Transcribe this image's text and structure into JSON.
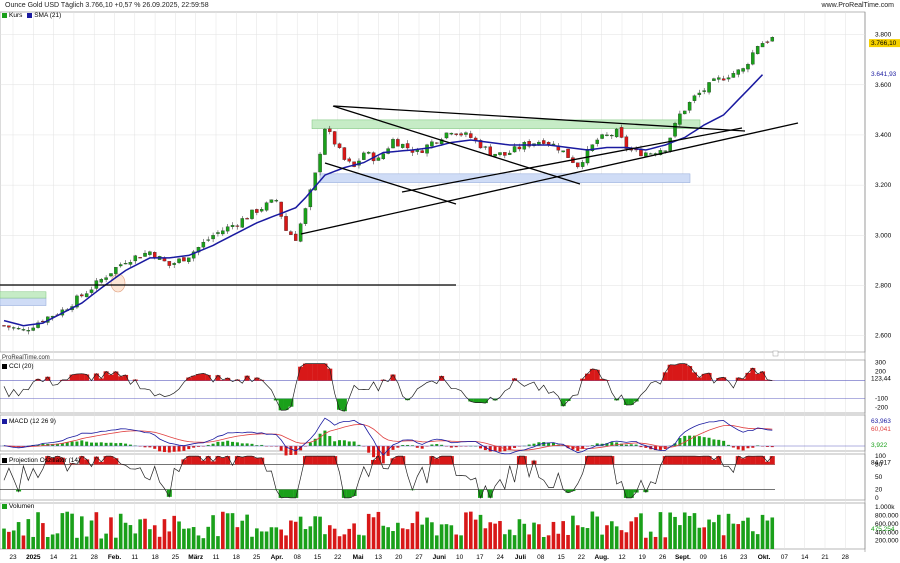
{
  "header": {
    "title": "Ounce Gold USD Täglich 3.766,10 +0,57 % 26.09.2025, 22:59:58",
    "source": "www.ProRealTime.com"
  },
  "brand": "ProRealTime.com",
  "legend": {
    "price": "Kurs",
    "sma": "SMA (21)",
    "cci": "CCI (20)",
    "macd": "MACD (12 26 9)",
    "projection": "Projection Oszillator (14)",
    "volume": "Volumen"
  },
  "colors": {
    "up": "#1aa01a",
    "down": "#d81818",
    "sma": "#1a1aa0",
    "grid": "#e2e2e2",
    "area_green": "#c6ecc6",
    "area_blue": "#cfdcf6",
    "macd_line": "#1a1aa0",
    "signal_line": "#e04040",
    "current_badge": "#f5d000"
  },
  "chart_data": [
    {
      "type": "line",
      "name": "price",
      "yticks": [
        "3.800",
        "3.600",
        "3.400",
        "3.200",
        "3.000",
        "2.800",
        "2.600"
      ],
      "ylim": [
        2535,
        3890
      ],
      "current": "3.766,10",
      "sma_label": "3.641,93",
      "price_path": [
        [
          0,
          2640
        ],
        [
          4,
          2620
        ],
        [
          8,
          2665
        ],
        [
          12,
          2700
        ],
        [
          16,
          2760
        ],
        [
          18,
          2790
        ],
        [
          21,
          2840
        ],
        [
          25,
          2900
        ],
        [
          30,
          2935
        ],
        [
          34,
          2880
        ],
        [
          38,
          2920
        ],
        [
          43,
          3000
        ],
        [
          48,
          3050
        ],
        [
          52,
          3100
        ],
        [
          56,
          3140
        ],
        [
          58,
          3020
        ],
        [
          60,
          2990
        ],
        [
          62,
          3100
        ],
        [
          64,
          3240
        ],
        [
          66,
          3430
        ],
        [
          68,
          3370
        ],
        [
          70,
          3300
        ],
        [
          72,
          3270
        ],
        [
          74,
          3330
        ],
        [
          77,
          3300
        ],
        [
          80,
          3380
        ],
        [
          85,
          3330
        ],
        [
          88,
          3370
        ],
        [
          92,
          3420
        ],
        [
          96,
          3390
        ],
        [
          100,
          3330
        ],
        [
          103,
          3320
        ],
        [
          107,
          3360
        ],
        [
          111,
          3380
        ],
        [
          114,
          3350
        ],
        [
          118,
          3280
        ],
        [
          122,
          3380
        ],
        [
          126,
          3410
        ],
        [
          128,
          3350
        ],
        [
          130,
          3330
        ],
        [
          133,
          3330
        ],
        [
          136,
          3350
        ],
        [
          139,
          3480
        ],
        [
          142,
          3550
        ],
        [
          146,
          3610
        ],
        [
          149,
          3640
        ],
        [
          152,
          3660
        ],
        [
          155,
          3760
        ],
        [
          158,
          3785
        ]
      ],
      "sma_path": [
        [
          0,
          2660
        ],
        [
          4,
          2640
        ],
        [
          8,
          2650
        ],
        [
          12,
          2690
        ],
        [
          16,
          2730
        ],
        [
          20,
          2790
        ],
        [
          25,
          2860
        ],
        [
          30,
          2910
        ],
        [
          34,
          2910
        ],
        [
          38,
          2920
        ],
        [
          43,
          2960
        ],
        [
          48,
          3010
        ],
        [
          52,
          3050
        ],
        [
          56,
          3080
        ],
        [
          60,
          3110
        ],
        [
          62,
          3150
        ],
        [
          66,
          3240
        ],
        [
          70,
          3270
        ],
        [
          74,
          3290
        ],
        [
          78,
          3330
        ],
        [
          84,
          3340
        ],
        [
          88,
          3350
        ],
        [
          92,
          3370
        ],
        [
          96,
          3380
        ],
        [
          100,
          3370
        ],
        [
          104,
          3360
        ],
        [
          108,
          3360
        ],
        [
          112,
          3360
        ],
        [
          116,
          3350
        ],
        [
          120,
          3340
        ],
        [
          124,
          3350
        ],
        [
          128,
          3350
        ],
        [
          132,
          3340
        ],
        [
          136,
          3360
        ],
        [
          140,
          3390
        ],
        [
          144,
          3440
        ],
        [
          148,
          3480
        ],
        [
          152,
          3560
        ],
        [
          156,
          3640
        ]
      ]
    },
    {
      "type": "line",
      "name": "CCI",
      "yticks": [
        "300",
        "200",
        "-100",
        "-200"
      ],
      "ylim": [
        -260,
        330
      ],
      "current": "123,44"
    },
    {
      "type": "line",
      "name": "MACD",
      "current_macd": "63,963",
      "current_signal": "60,041",
      "current_hist": "3,922"
    },
    {
      "type": "line",
      "name": "Projection Oszillator",
      "yticks": [
        "100",
        "80",
        "50",
        "20",
        "0"
      ],
      "ylim": [
        -5,
        105
      ],
      "current": "84,917"
    },
    {
      "type": "bar",
      "name": "Volumen",
      "yticks": [
        "1.000k",
        "800.000",
        "600.000",
        "400.000",
        "200.000"
      ],
      "ylim": [
        0,
        1100000
      ],
      "current": "475.254"
    }
  ],
  "xaxis": {
    "labels": [
      {
        "t": "23",
        "b": false
      },
      {
        "t": "2025",
        "b": true
      },
      {
        "t": "14",
        "b": false
      },
      {
        "t": "21",
        "b": false
      },
      {
        "t": "28",
        "b": false
      },
      {
        "t": "Feb.",
        "b": true
      },
      {
        "t": "11",
        "b": false
      },
      {
        "t": "18",
        "b": false
      },
      {
        "t": "25",
        "b": false
      },
      {
        "t": "März",
        "b": true
      },
      {
        "t": "11",
        "b": false
      },
      {
        "t": "18",
        "b": false
      },
      {
        "t": "25",
        "b": false
      },
      {
        "t": "Apr.",
        "b": true
      },
      {
        "t": "08",
        "b": false
      },
      {
        "t": "15",
        "b": false
      },
      {
        "t": "22",
        "b": false
      },
      {
        "t": "Mai",
        "b": true
      },
      {
        "t": "13",
        "b": false
      },
      {
        "t": "20",
        "b": false
      },
      {
        "t": "27",
        "b": false
      },
      {
        "t": "Juni",
        "b": true
      },
      {
        "t": "10",
        "b": false
      },
      {
        "t": "17",
        "b": false
      },
      {
        "t": "24",
        "b": false
      },
      {
        "t": "Juli",
        "b": true
      },
      {
        "t": "08",
        "b": false
      },
      {
        "t": "15",
        "b": false
      },
      {
        "t": "22",
        "b": false
      },
      {
        "t": "Aug.",
        "b": true
      },
      {
        "t": "12",
        "b": false
      },
      {
        "t": "19",
        "b": false
      },
      {
        "t": "26",
        "b": false
      },
      {
        "t": "Sept.",
        "b": true
      },
      {
        "t": "09",
        "b": false
      },
      {
        "t": "16",
        "b": false
      },
      {
        "t": "23",
        "b": false
      },
      {
        "t": "Okt.",
        "b": true
      },
      {
        "t": "07",
        "b": false
      },
      {
        "t": "14",
        "b": false
      },
      {
        "t": "21",
        "b": false
      },
      {
        "t": "28",
        "b": false
      }
    ]
  }
}
